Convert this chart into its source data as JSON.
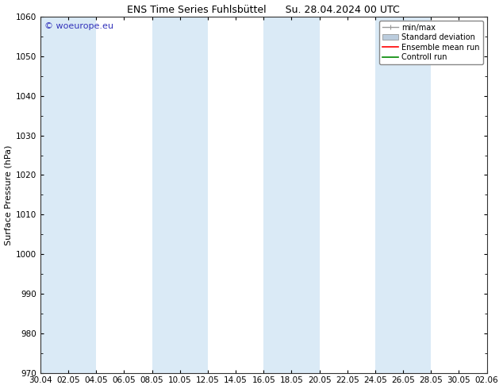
{
  "title_left": "ENS Time Series Fuhlsbüttel",
  "title_right": "Su. 28.04.2024 00 UTC",
  "ylabel": "Surface Pressure (hPa)",
  "ylim": [
    970,
    1060
  ],
  "yticks": [
    970,
    980,
    990,
    1000,
    1010,
    1020,
    1030,
    1040,
    1050,
    1060
  ],
  "xtick_labels": [
    "30.04",
    "02.05",
    "04.05",
    "06.05",
    "08.05",
    "10.05",
    "12.05",
    "14.05",
    "16.05",
    "18.05",
    "20.05",
    "22.05",
    "24.05",
    "26.05",
    "28.05",
    "30.05",
    "02.06"
  ],
  "watermark": "© woeurope.eu",
  "watermark_color": "#3333bb",
  "legend_entries": [
    "min/max",
    "Standard deviation",
    "Ensemble mean run",
    "Controll run"
  ],
  "legend_line_colors": [
    "#999999",
    "#bbccdd",
    "#ff0000",
    "#008800"
  ],
  "shaded_band_color": "#daeaf6",
  "background_color": "#ffffff",
  "title_fontsize": 9,
  "axis_label_fontsize": 8,
  "tick_fontsize": 7.5,
  "legend_fontsize": 7,
  "watermark_fontsize": 8
}
